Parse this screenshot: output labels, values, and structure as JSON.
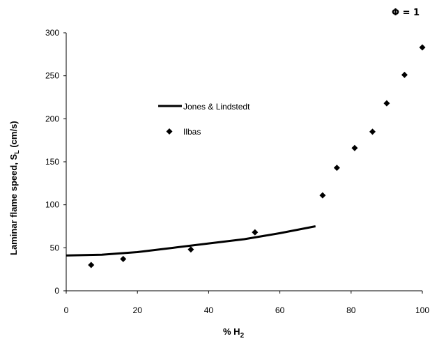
{
  "chart_data": {
    "type": "line",
    "annotation": "Φ = 1",
    "xlabel": "% H",
    "xlabel_sub": "2",
    "ylabel": "Laminar flame speed, S",
    "ylabel_sub": "L",
    "ylabel_unit": " (cm/s)",
    "xlim": [
      0,
      100
    ],
    "ylim": [
      0,
      300
    ],
    "xticks": [
      0,
      20,
      40,
      60,
      80,
      100
    ],
    "yticks": [
      0,
      50,
      100,
      150,
      200,
      250,
      300
    ],
    "grid": false,
    "legend_position": "upper-left",
    "series": [
      {
        "name": "Jones & Lindstedt",
        "style": "line",
        "x": [
          0,
          10,
          20,
          30,
          40,
          50,
          60,
          70
        ],
        "y": [
          41,
          42,
          45,
          50,
          55,
          60,
          67,
          75
        ]
      },
      {
        "name": "Ilbas",
        "style": "diamond",
        "x": [
          7,
          16,
          35,
          53,
          72,
          76,
          81,
          86,
          90,
          95,
          100
        ],
        "y": [
          30,
          37,
          48,
          68,
          111,
          143,
          166,
          185,
          218,
          251,
          283
        ]
      }
    ]
  }
}
